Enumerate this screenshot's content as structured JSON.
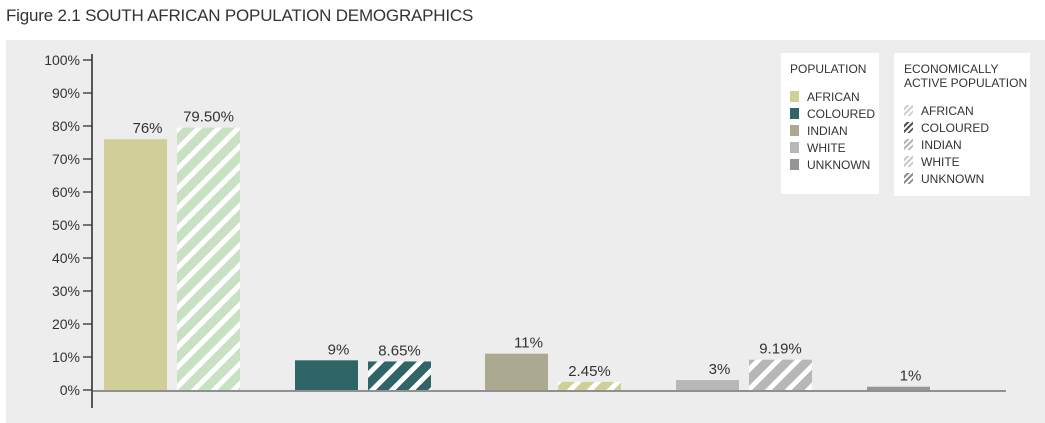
{
  "figure": {
    "title": "Figure 2.1 SOUTH AFRICAN POPULATION DEMOGRAPHICS"
  },
  "legend": {
    "population_title": "POPULATION",
    "active_title": "ECONOMICALLY\nACTIVE POPULATION",
    "items": [
      "AFRICAN",
      "COLOURED",
      "INDIAN",
      "WHITE",
      "UNKNOWN"
    ]
  },
  "colors": {
    "african": "#cfcf97",
    "african_active": "#c9e1c3",
    "coloured": "#2f6566",
    "indian": "#aca991",
    "white": "#b7b7b7",
    "unknown": "#959595",
    "axis": "#333333",
    "panel": "#ededed"
  },
  "chart_data": {
    "type": "bar",
    "categories": [
      "AFRICAN",
      "COLOURED",
      "INDIAN",
      "WHITE",
      "UNKNOWN"
    ],
    "series": [
      {
        "name": "POPULATION",
        "values": [
          76,
          9,
          11,
          3,
          1
        ],
        "labels": [
          "76%",
          "9%",
          "11%",
          "3%",
          "1%"
        ]
      },
      {
        "name": "ECONOMICALLY ACTIVE POPULATION",
        "values": [
          79.5,
          8.65,
          2.45,
          9.19,
          null
        ],
        "labels": [
          "79.50%",
          "8.65%",
          "2.45%",
          "9.19%",
          null
        ]
      }
    ],
    "ylim": [
      0,
      100
    ],
    "yticks": [
      "0%",
      "10%",
      "20%",
      "30%",
      "40%",
      "50%",
      "60%",
      "70%",
      "80%",
      "90%",
      "100%"
    ],
    "grid": false,
    "legend_position": "top-right"
  }
}
